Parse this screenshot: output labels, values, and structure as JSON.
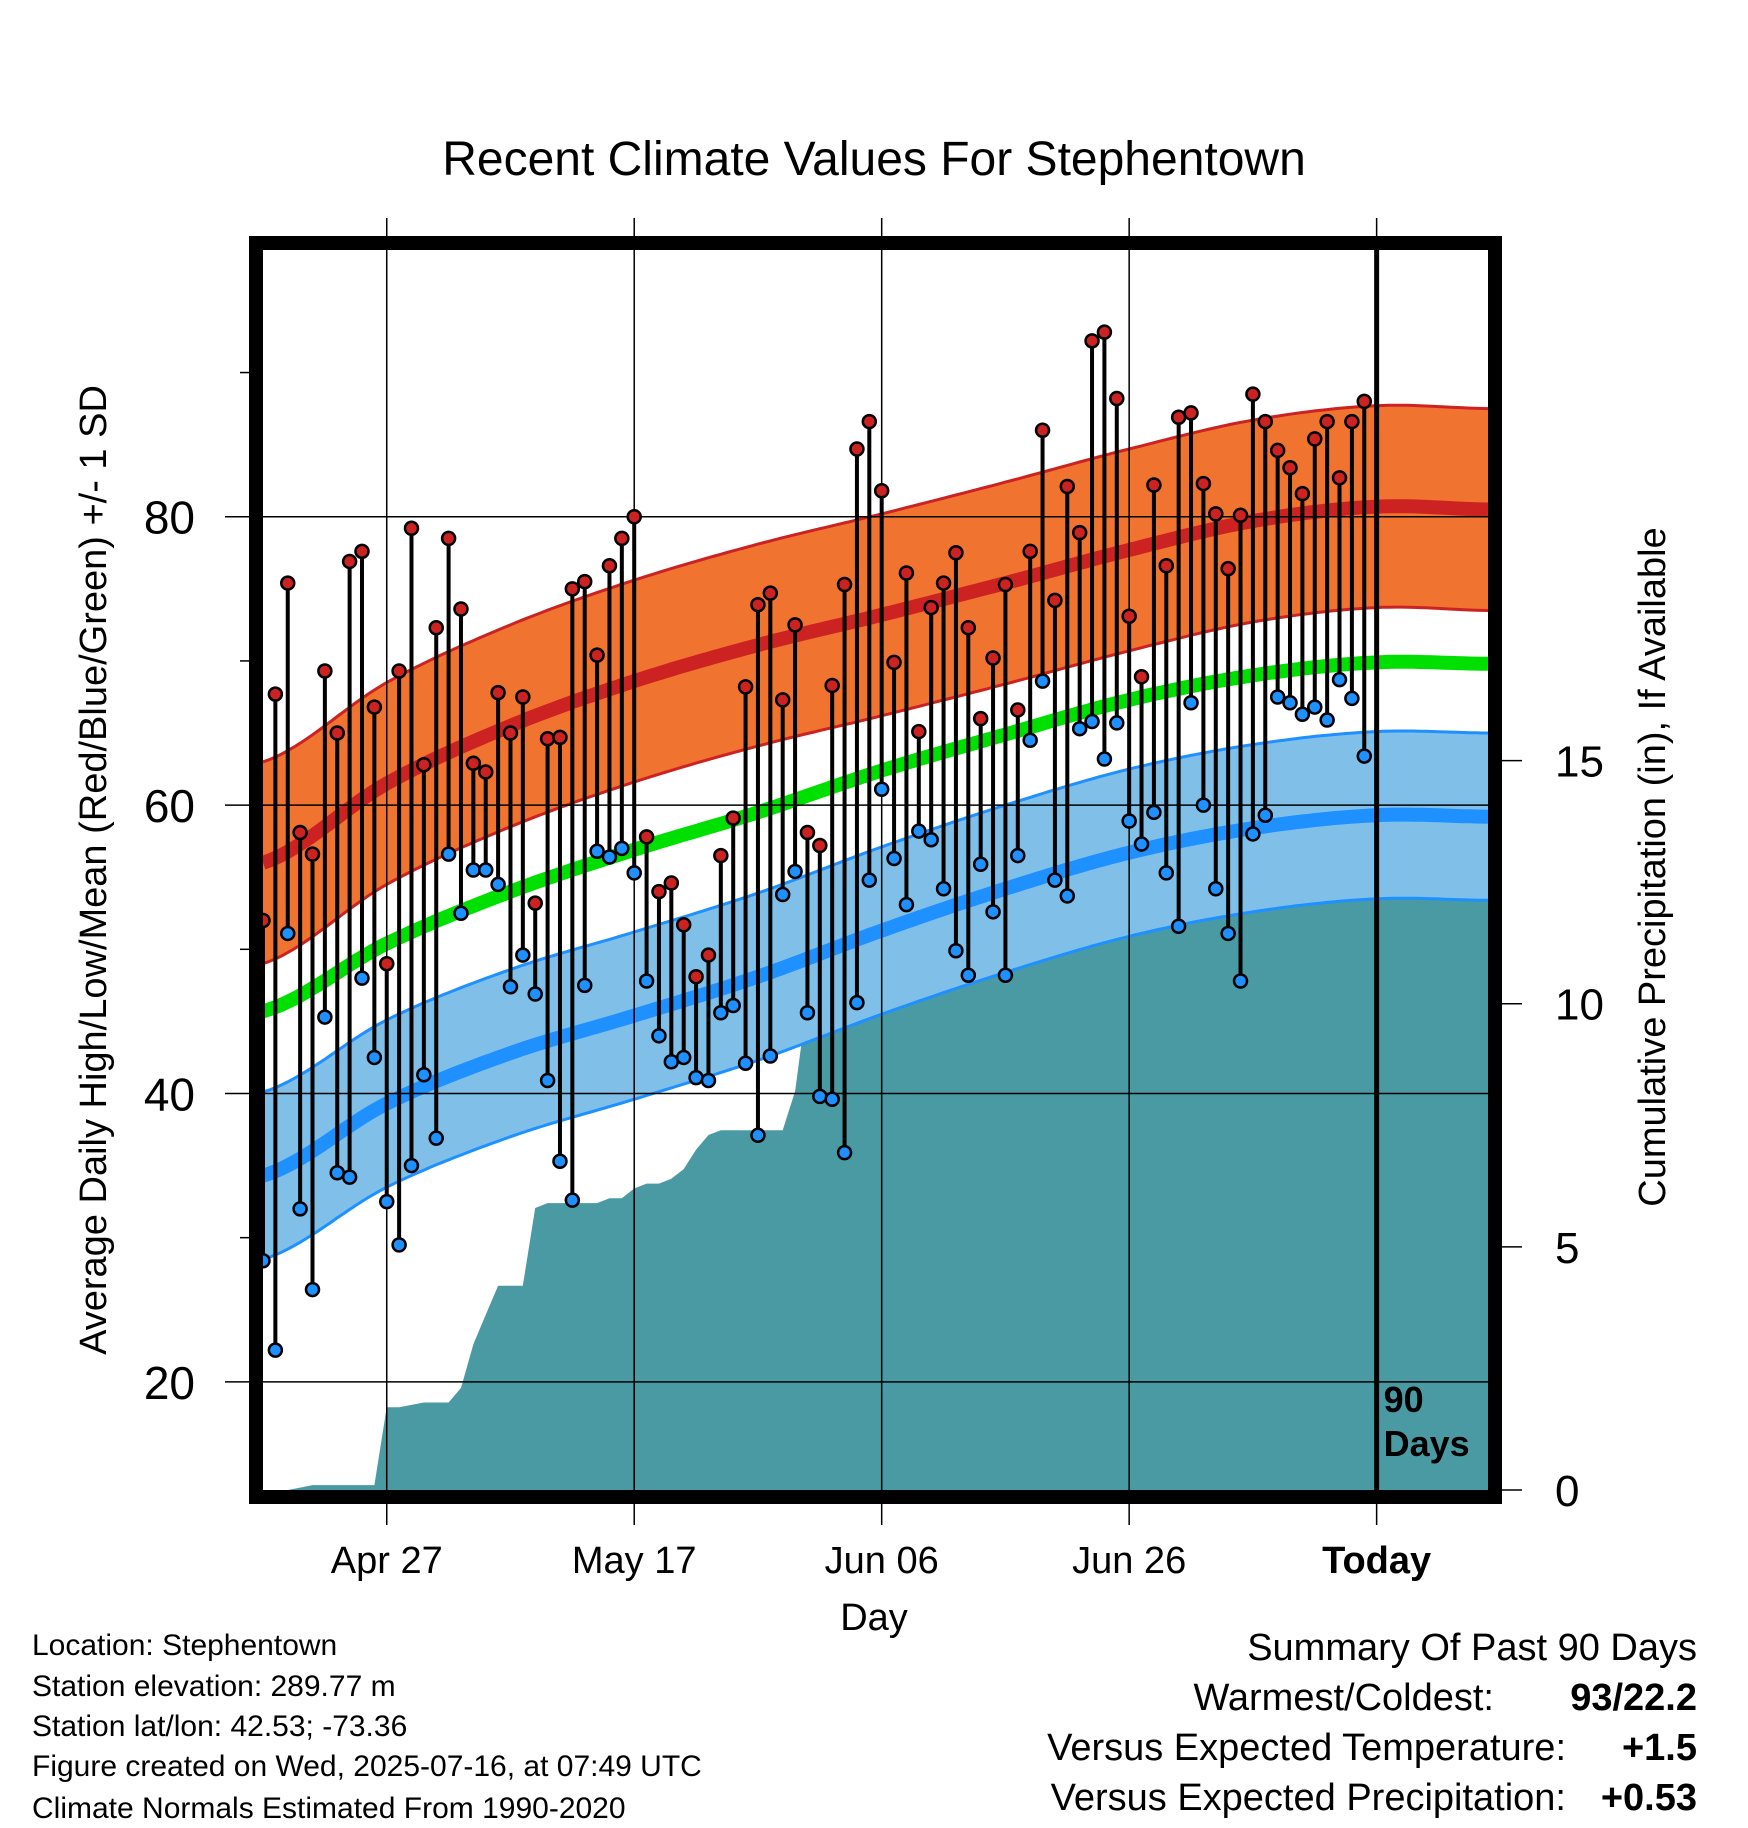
{
  "chart_data": {
    "type": "line",
    "title": "Recent Climate Values For Stephentown",
    "xlabel": "Day",
    "ylabel": "Average Daily High/Low/Mean (Red/Blue/Green) +/- 1 SD",
    "y2label": "Cumulative Precipitation (in), If Available",
    "x_range_days": [
      -90,
      9
    ],
    "ylim": [
      12.5,
      98.5
    ],
    "y_ticks": [
      20,
      40,
      60,
      80
    ],
    "y2lim": [
      0,
      25.5
    ],
    "y2_ticks": [
      0,
      5,
      10,
      15
    ],
    "x_ticks": [
      {
        "day": -80,
        "label": "Apr 27"
      },
      {
        "day": -60,
        "label": "May 17"
      },
      {
        "day": -40,
        "label": "Jun 06"
      },
      {
        "day": -20,
        "label": "Jun 26"
      },
      {
        "day": 0,
        "label": "Today"
      }
    ],
    "today_marker_label": [
      "90",
      "Days"
    ],
    "colors": {
      "high": "#cc2222",
      "high_band": "#f07430",
      "low": "#1e90ff",
      "low_band": "#80c0e8",
      "mean": "#00e000",
      "precip": "#4a9aa4"
    },
    "normals": {
      "days": [
        -90,
        -80,
        -70,
        -60,
        -50,
        -40,
        -30,
        -20,
        -10,
        0,
        9
      ],
      "high": [
        56,
        61.5,
        65.5,
        68.6,
        71.1,
        73.2,
        75.4,
        77.7,
        79.7,
        80.7,
        80.5
      ],
      "high_sd": 7,
      "low": [
        34.3,
        39.3,
        42.8,
        45.4,
        48.1,
        51.3,
        54.2,
        56.7,
        58.4,
        59.3,
        59.2
      ],
      "low_sd": 5.8,
      "mean": [
        45.7,
        50.4,
        54,
        56.9,
        59.5,
        62.4,
        64.9,
        67.3,
        69,
        69.9,
        69.8
      ]
    },
    "series": [
      {
        "name": "Daily High",
        "x": [
          -90,
          -89,
          -88,
          -87,
          -86,
          -85,
          -84,
          -83,
          -82,
          -81,
          -80,
          -79,
          -78,
          -77,
          -76,
          -75,
          -74,
          -73,
          -72,
          -71,
          -70,
          -69,
          -68,
          -67,
          -66,
          -65,
          -64,
          -63,
          -62,
          -61,
          -60,
          -59,
          -58,
          -57,
          -56,
          -55,
          -54,
          -53,
          -52,
          -51,
          -50,
          -49,
          -48,
          -47,
          -46,
          -45,
          -44,
          -43,
          -42,
          -41,
          -40,
          -39,
          -38,
          -37,
          -36,
          -35,
          -34,
          -33,
          -32,
          -31,
          -30,
          -29,
          -28,
          -27,
          -26,
          -25,
          -24,
          -23,
          -22,
          -21,
          -20,
          -19,
          -18,
          -17,
          -16,
          -15,
          -14,
          -13,
          -12,
          -11,
          -10,
          -9,
          -8,
          -7,
          -6,
          -5,
          -4,
          -3,
          -2,
          -1
        ],
        "values": [
          52,
          67.7,
          75.4,
          58.1,
          56.6,
          69.3,
          65,
          76.9,
          77.6,
          66.8,
          49,
          69.3,
          79.2,
          62.8,
          72.3,
          78.5,
          73.6,
          62.9,
          62.3,
          67.8,
          65,
          67.5,
          53.2,
          64.6,
          64.7,
          75,
          75.5,
          70.4,
          76.6,
          78.5,
          80,
          57.8,
          54,
          54.6,
          51.7,
          48.1,
          49.6,
          56.5,
          59.1,
          68.2,
          73.9,
          74.7,
          67.3,
          72.5,
          58.1,
          57.2,
          68.3,
          75.3,
          84.7,
          86.6,
          81.8,
          69.9,
          76.1,
          65.1,
          73.7,
          75.4,
          77.5,
          72.3,
          66,
          70.2,
          75.3,
          66.6,
          77.6,
          86,
          74.2,
          82.1,
          78.9,
          92.2,
          92.8,
          88.2,
          73.1,
          68.9,
          82.2,
          76.6,
          86.9,
          87.2,
          82.3,
          80.2,
          76.4,
          80.1,
          88.5,
          86.6,
          84.6,
          83.4,
          81.6,
          85.4,
          86.6,
          82.7,
          86.6,
          88
        ]
      },
      {
        "name": "Daily Low",
        "x": [
          -90,
          -89,
          -88,
          -87,
          -86,
          -85,
          -84,
          -83,
          -82,
          -81,
          -80,
          -79,
          -78,
          -77,
          -76,
          -75,
          -74,
          -73,
          -72,
          -71,
          -70,
          -69,
          -68,
          -67,
          -66,
          -65,
          -64,
          -63,
          -62,
          -61,
          -60,
          -59,
          -58,
          -57,
          -56,
          -55,
          -54,
          -53,
          -52,
          -51,
          -50,
          -49,
          -48,
          -47,
          -46,
          -45,
          -44,
          -43,
          -42,
          -41,
          -40,
          -39,
          -38,
          -37,
          -36,
          -35,
          -34,
          -33,
          -32,
          -31,
          -30,
          -29,
          -28,
          -27,
          -26,
          -25,
          -24,
          -23,
          -22,
          -21,
          -20,
          -19,
          -18,
          -17,
          -16,
          -15,
          -14,
          -13,
          -12,
          -11,
          -10,
          -9,
          -8,
          -7,
          -6,
          -5,
          -4,
          -3,
          -2,
          -1
        ],
        "values": [
          28.4,
          22.2,
          51.1,
          32,
          26.4,
          45.3,
          34.5,
          34.2,
          48,
          42.5,
          32.5,
          29.5,
          35,
          41.3,
          36.9,
          56.6,
          52.5,
          55.5,
          55.5,
          54.5,
          47.4,
          49.6,
          46.9,
          40.9,
          35.3,
          32.6,
          47.5,
          56.8,
          56.4,
          57,
          55.3,
          47.8,
          44,
          42.2,
          42.5,
          41.1,
          40.9,
          45.6,
          46.1,
          42.1,
          37.1,
          42.6,
          53.8,
          55.4,
          45.6,
          39.8,
          39.6,
          35.9,
          46.3,
          54.8,
          61.1,
          56.3,
          53.1,
          58.2,
          57.6,
          54.2,
          49.9,
          48.2,
          55.9,
          52.6,
          48.2,
          56.5,
          64.5,
          68.6,
          54.8,
          53.7,
          65.3,
          65.8,
          63.2,
          65.7,
          58.9,
          57.3,
          59.5,
          55.3,
          51.6,
          67.1,
          60,
          54.2,
          51.1,
          47.8,
          58,
          59.3,
          67.5,
          67.1,
          66.3,
          66.8,
          65.9,
          68.7,
          67.4,
          63.4
        ]
      }
    ],
    "precipitation": {
      "days": [
        -90,
        -88,
        -87,
        -86,
        -85,
        -84,
        -82,
        -81,
        -80,
        -79,
        -78,
        -77,
        -76,
        -75,
        -74,
        -73,
        -72,
        -71,
        -70,
        -69,
        -68,
        -67,
        -66,
        -65,
        -64,
        -63,
        -62,
        -61,
        -60,
        -59,
        -58,
        -57,
        -56,
        -55,
        -54,
        -53,
        -52,
        -51,
        -50,
        -49,
        -48,
        -47,
        -46,
        -45,
        -44,
        -43,
        -42,
        -41,
        -40,
        -39,
        -38,
        -37,
        -36,
        -35,
        -34,
        -33,
        -32,
        -31,
        -30,
        -29,
        -28,
        -27,
        -26,
        -25,
        -24,
        -23,
        -22,
        -21,
        -20,
        -19,
        -18,
        -17,
        -16,
        -15,
        -14,
        -13,
        -12,
        -11,
        -10,
        -9,
        -8,
        -7,
        -6,
        -5,
        -4,
        -3,
        -2,
        -1,
        0,
        9
      ],
      "values": [
        0,
        0,
        0.05,
        0.1,
        0.1,
        0.1,
        0.1,
        0.1,
        1.7,
        1.7,
        1.75,
        1.8,
        1.8,
        1.8,
        2.1,
        3.0,
        3.6,
        4.2,
        4.2,
        4.2,
        5.8,
        5.9,
        5.9,
        5.9,
        5.9,
        5.9,
        6.0,
        6.0,
        6.2,
        6.3,
        6.3,
        6.4,
        6.6,
        7.0,
        7.3,
        7.4,
        7.4,
        7.4,
        7.4,
        7.4,
        7.4,
        8.2,
        10.1,
        10.2,
        10.2,
        10.2,
        10.2,
        11.0,
        11.2,
        11.5,
        11.5,
        11.5,
        11.7,
        11.8,
        11.8,
        11.8,
        11.8,
        12.0,
        12.0,
        12.1,
        12.5,
        12.5,
        12.6,
        12.7,
        12.7,
        12.7,
        12.7,
        12.7,
        12.7,
        12.7,
        12.7,
        12.75,
        12.8,
        12.8,
        12.85,
        12.85,
        12.85,
        12.85,
        12.85,
        12.9,
        13.0,
        13.0,
        13.0,
        13.05,
        13.05,
        13.05,
        13.1,
        13.1,
        13.1,
        13.1
      ]
    }
  },
  "footer": {
    "location": "Location: Stephentown",
    "elevation": "Station elevation: 289.77 m",
    "latlon": "Station lat/lon: 42.53; -73.36",
    "created": "Figure created on Wed, 2025-07-16, at 07:49 UTC",
    "normals": "Climate Normals Estimated From 1990-2020"
  },
  "summary": {
    "title": "Summary Of Past 90 Days",
    "warmest_label": "Warmest/Coldest:",
    "warmest_value": "93/22.2",
    "temp_label": "Versus Expected Temperature:",
    "temp_value": "+1.5",
    "precip_label": "Versus Expected Precipitation:",
    "precip_value": "+0.53",
    "temp_color": "#dd2222",
    "precip_color": "#22cc22"
  }
}
